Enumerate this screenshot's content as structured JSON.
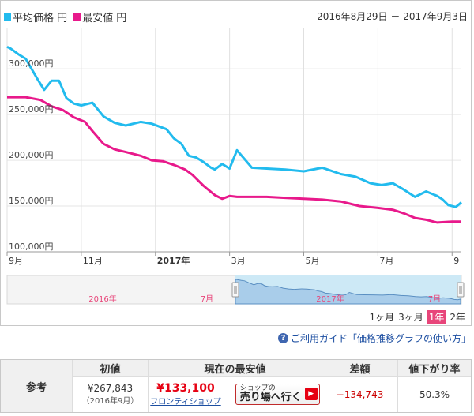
{
  "legend": {
    "avg_label": "平均価格 円",
    "min_label": "最安値 円"
  },
  "date_range": "2016年8月29日 － 2017年9月3日",
  "colors": {
    "avg": "#22bbee",
    "min": "#e8198b",
    "navigator_fill": "#cde9f6",
    "navigator_line": "#5a8fc2"
  },
  "chart_data": {
    "type": "line",
    "x_tick_labels": [
      "9月",
      "11月",
      "2017年",
      "3月",
      "5月",
      "7月",
      "9"
    ],
    "x_ticks_month_index": [
      0,
      2,
      4,
      6,
      8,
      10,
      12
    ],
    "y_tick_labels": [
      "100,000円",
      "150,000円",
      "200,000円",
      "250,000円",
      "300,000円"
    ],
    "y_ticks": [
      100000,
      150000,
      200000,
      250000,
      300000
    ],
    "ylim": [
      100000,
      345000
    ],
    "xlim_months": [
      0,
      12.25
    ],
    "series": [
      {
        "name": "平均価格",
        "x_months": [
          0,
          0.1,
          0.3,
          0.5,
          0.8,
          1.0,
          1.2,
          1.4,
          1.6,
          1.8,
          2.0,
          2.3,
          2.6,
          2.9,
          3.2,
          3.6,
          3.9,
          4.1,
          4.3,
          4.5,
          4.7,
          4.9,
          5.1,
          5.3,
          5.5,
          5.6,
          5.8,
          6.0,
          6.2,
          6.6,
          7.0,
          7.5,
          8.0,
          8.5,
          9.0,
          9.4,
          9.8,
          10.1,
          10.4,
          10.7,
          11.0,
          11.3,
          11.6,
          11.75,
          11.9,
          12.1,
          12.25
        ],
        "values": [
          324000,
          322000,
          316000,
          311000,
          290000,
          277000,
          287000,
          287000,
          268000,
          262000,
          260000,
          263000,
          248000,
          241000,
          238000,
          242000,
          240000,
          237000,
          234000,
          224000,
          218000,
          205000,
          203000,
          198000,
          192000,
          190000,
          196000,
          191000,
          211000,
          192000,
          191000,
          190000,
          188000,
          192000,
          185000,
          182000,
          175000,
          173000,
          175000,
          168000,
          160000,
          166000,
          161000,
          157000,
          151000,
          149000,
          154000
        ]
      },
      {
        "name": "最安値",
        "x_months": [
          0,
          0.5,
          0.9,
          1.2,
          1.5,
          1.8,
          2.1,
          2.3,
          2.6,
          2.9,
          3.2,
          3.6,
          3.9,
          4.2,
          4.5,
          4.8,
          5.0,
          5.3,
          5.6,
          5.8,
          6.0,
          6.2,
          6.6,
          7.0,
          7.5,
          8.0,
          8.5,
          9.0,
          9.5,
          10.0,
          10.4,
          10.7,
          11.0,
          11.3,
          11.6,
          12.0,
          12.25
        ],
        "values": [
          269000,
          269000,
          266000,
          259000,
          255000,
          247000,
          242000,
          232000,
          218000,
          212000,
          209000,
          205000,
          200000,
          199000,
          195000,
          190000,
          184000,
          172000,
          162000,
          158000,
          161000,
          160000,
          160000,
          160000,
          159000,
          158000,
          157000,
          155000,
          150000,
          148000,
          146000,
          142000,
          137000,
          135000,
          132000,
          133000,
          133000
        ]
      }
    ]
  },
  "navigator": {
    "year_labels": [
      "2016年",
      "7月",
      "2017年",
      "7月"
    ]
  },
  "range_buttons": [
    "1ヶ月",
    "3ヶ月",
    "1年",
    "2年"
  ],
  "active_range": "1年",
  "guide_text": "ご利用ガイド「価格推移グラフの使い方」",
  "summary": {
    "label": "参考",
    "initial_header": "初値",
    "initial_value": "¥267,843",
    "initial_date": "（2016年9月）",
    "current_header": "現在の最安値",
    "current_price": "¥133,100",
    "shop_name": "フロンティショップ",
    "store_btn_line1": "ショップの",
    "store_btn_line2": "売り場へ行く",
    "diff_header": "差額",
    "diff_value": "−134,743",
    "drop_header": "値下がり率",
    "drop_value": "50.3%"
  }
}
